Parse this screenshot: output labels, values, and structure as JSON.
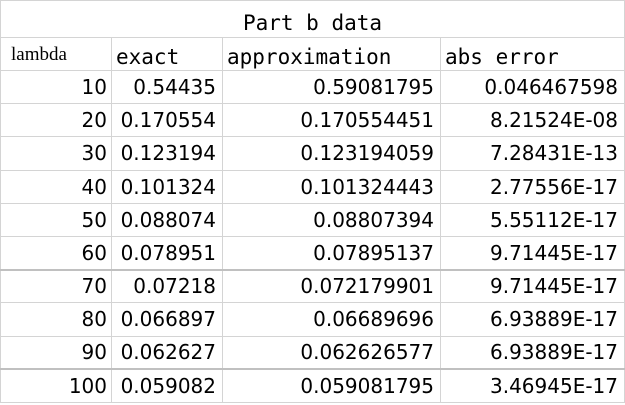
{
  "sheet": {
    "title": "Part b data",
    "columns": [
      "lambda",
      "exact",
      "approximation",
      "abs error"
    ],
    "rows": [
      {
        "lambda": "10",
        "exact": "0.54435",
        "approximation": "0.59081795",
        "abs_error": "0.046467598"
      },
      {
        "lambda": "20",
        "exact": "0.170554",
        "approximation": "0.170554451",
        "abs_error": "8.21524E-08"
      },
      {
        "lambda": "30",
        "exact": "0.123194",
        "approximation": "0.123194059",
        "abs_error": "7.28431E-13"
      },
      {
        "lambda": "40",
        "exact": "0.101324",
        "approximation": "0.101324443",
        "abs_error": "2.77556E-17"
      },
      {
        "lambda": "50",
        "exact": "0.088074",
        "approximation": "0.08807394",
        "abs_error": "5.55112E-17"
      },
      {
        "lambda": "60",
        "exact": "0.078951",
        "approximation": "0.07895137",
        "abs_error": "9.71445E-17"
      },
      {
        "lambda": "70",
        "exact": "0.07218",
        "approximation": "0.072179901",
        "abs_error": "9.71445E-17"
      },
      {
        "lambda": "80",
        "exact": "0.066897",
        "approximation": "0.06689696",
        "abs_error": "6.93889E-17"
      },
      {
        "lambda": "90",
        "exact": "0.062627",
        "approximation": "0.062626577",
        "abs_error": "6.93889E-17"
      },
      {
        "lambda": "100",
        "exact": "0.059082",
        "approximation": "0.059081795",
        "abs_error": "3.46945E-17"
      }
    ]
  },
  "colors": {
    "gridline": "#d4d4d4",
    "text": "#000000",
    "background": "#ffffff"
  }
}
